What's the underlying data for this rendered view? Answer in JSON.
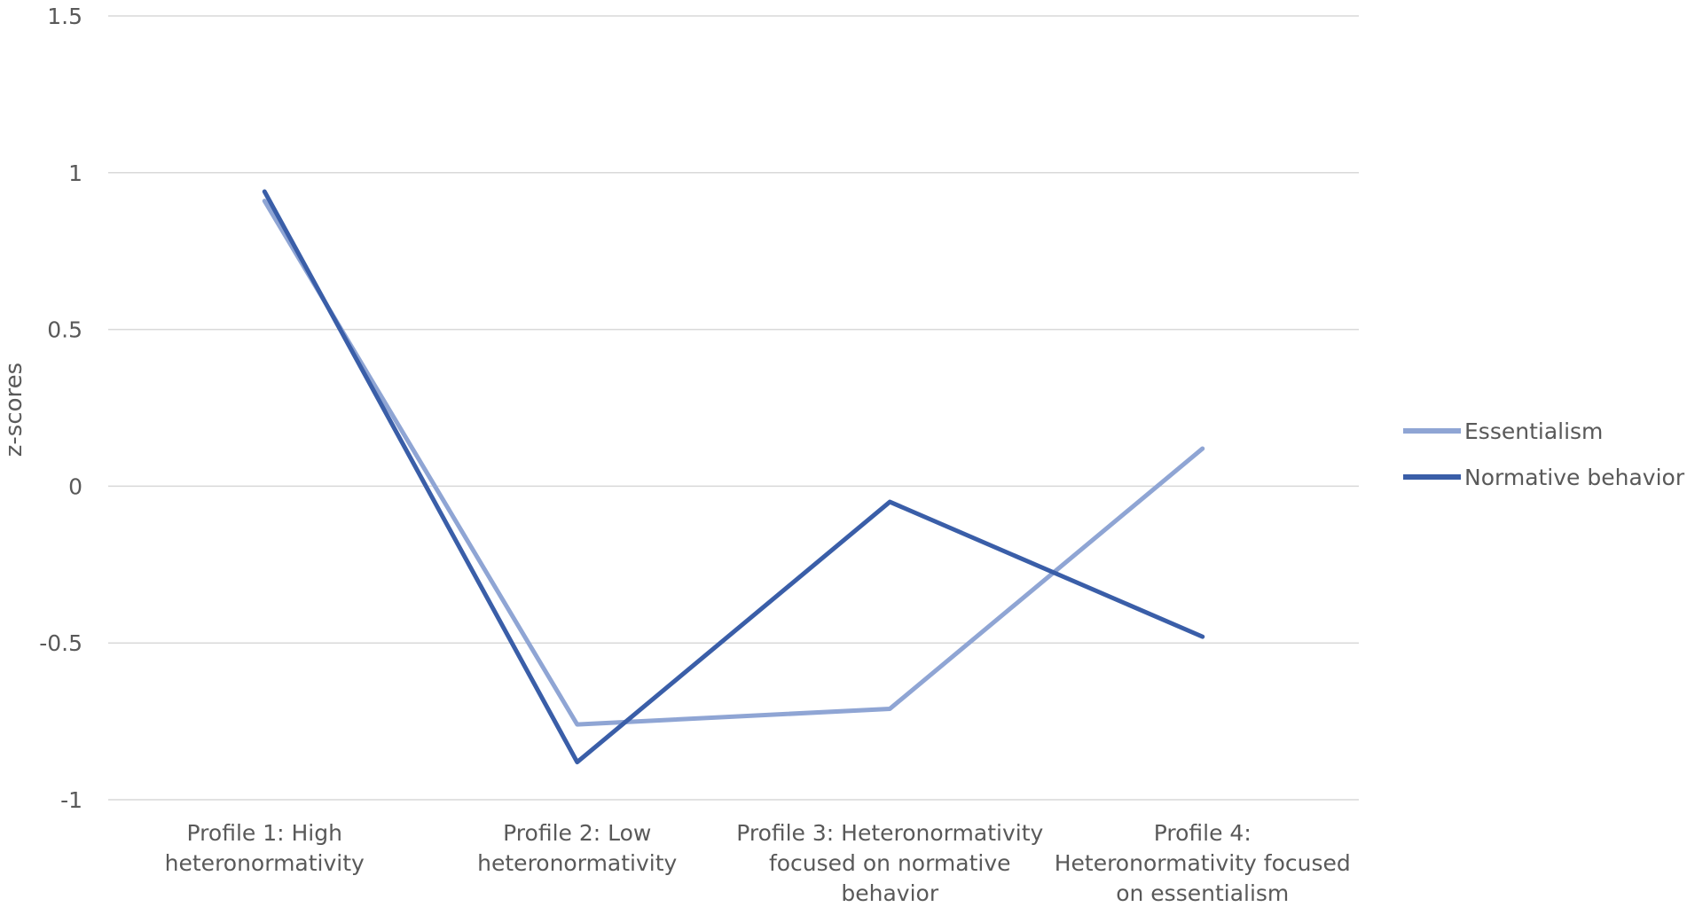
{
  "chart_data": {
    "type": "line",
    "ylabel": "z-scores",
    "xlabel": "",
    "ylim": [
      -1,
      1.5
    ],
    "yticks": [
      -1,
      -0.5,
      0,
      0.5,
      1,
      1.5
    ],
    "ytick_labels": [
      "-1",
      "-0.5",
      "0",
      "0.5",
      "1",
      "1.5"
    ],
    "grid": true,
    "legend_position": "right",
    "categories": [
      [
        "Profile 1: High",
        "heteronormativity"
      ],
      [
        "Profile 2: Low",
        "heteronormativity"
      ],
      [
        "Profile 3: Heteronormativity",
        "focused on normative",
        "behavior"
      ],
      [
        "Profile 4:",
        "Heteronormativity focused",
        "on essentialism"
      ]
    ],
    "series": [
      {
        "name": "Essentialism",
        "color": "#8fa5d4",
        "values": [
          0.91,
          -0.76,
          -0.71,
          0.12
        ]
      },
      {
        "name": "Normative behavior",
        "color": "#3a5ea8",
        "values": [
          0.94,
          -0.88,
          -0.05,
          -0.48
        ]
      }
    ]
  }
}
